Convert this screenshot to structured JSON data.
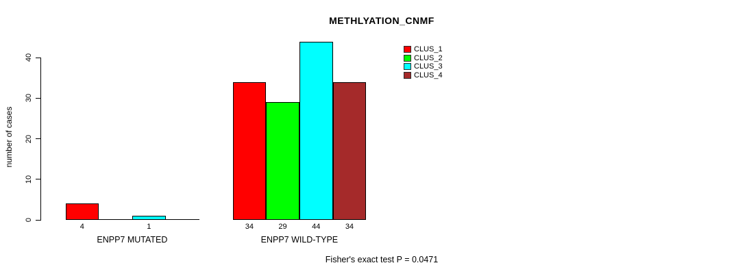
{
  "title": "METHLYATION_CNMF",
  "footer": "Fisher's exact test P = 0.0471",
  "chart_data": {
    "type": "bar",
    "title": "METHLYATION_CNMF",
    "xlabel": "",
    "ylabel": "number of cases",
    "categories": [
      "ENPP7 MUTATED",
      "ENPP7 WILD-TYPE"
    ],
    "series": [
      {
        "name": "CLUS_1",
        "color": "#ff0000",
        "values": [
          4,
          34
        ]
      },
      {
        "name": "CLUS_2",
        "color": "#00ff00",
        "values": [
          0,
          29
        ]
      },
      {
        "name": "CLUS_3",
        "color": "#00ffff",
        "values": [
          1,
          44
        ]
      },
      {
        "name": "CLUS_4",
        "color": "#a52a2a",
        "values": [
          0,
          34
        ]
      }
    ],
    "bar_value_labels_shown_only_if_nonzero": true,
    "yticks": [
      0,
      10,
      20,
      30,
      40
    ],
    "ylim": [
      0,
      44
    ],
    "grid": false,
    "legend_position": "top-right",
    "legend_entries": [
      "CLUS_1",
      "CLUS_2",
      "CLUS_3",
      "CLUS_4"
    ],
    "annotation": "Fisher's exact test P = 0.0471"
  }
}
